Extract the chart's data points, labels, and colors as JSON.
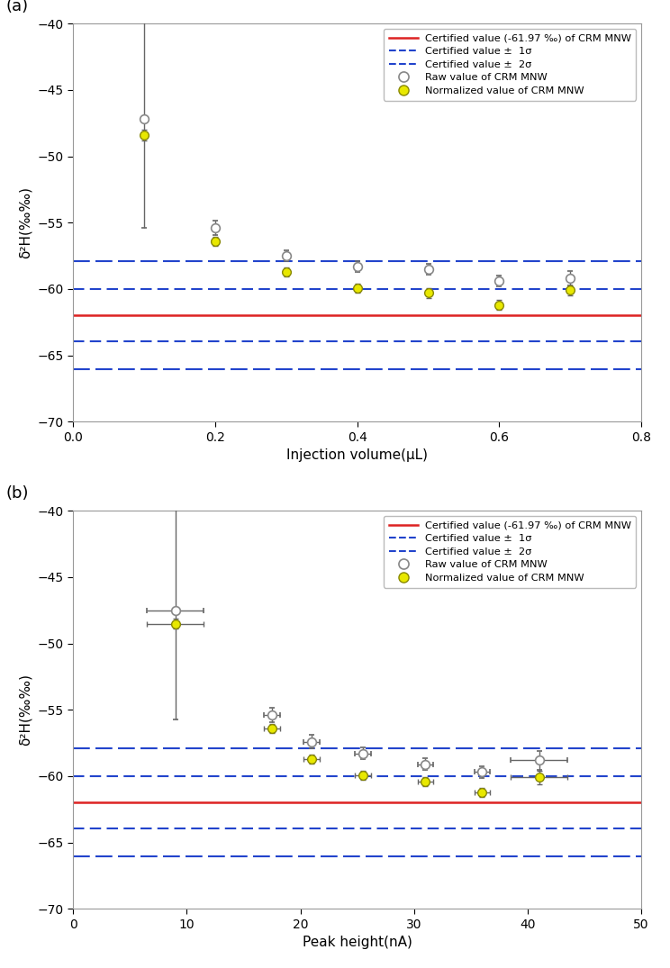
{
  "certified_value": -61.97,
  "sigma1": 1.97,
  "sigma2": 4.1,
  "panel_a": {
    "xlabel": "Injection volume(μL)",
    "xlim": [
      0.0,
      0.8
    ],
    "xticks": [
      0.0,
      0.2,
      0.4,
      0.6,
      0.8
    ],
    "raw_x": [
      0.1,
      0.2,
      0.3,
      0.4,
      0.5,
      0.6,
      0.7
    ],
    "raw_y": [
      -47.2,
      -55.4,
      -57.5,
      -58.3,
      -58.5,
      -59.4,
      -59.2
    ],
    "raw_yerr": [
      8.2,
      0.55,
      0.4,
      0.4,
      0.4,
      0.4,
      0.55
    ],
    "norm_x": [
      0.1,
      0.2,
      0.3,
      0.4,
      0.5,
      0.6,
      0.7
    ],
    "norm_y": [
      -48.4,
      -56.4,
      -58.7,
      -59.95,
      -60.3,
      -61.2,
      -60.1
    ],
    "norm_yerr": [
      0.4,
      0.35,
      0.35,
      0.35,
      0.35,
      0.35,
      0.35
    ]
  },
  "panel_b": {
    "xlabel": "Peak height(nA)",
    "xlim": [
      0,
      50
    ],
    "xticks": [
      0,
      10,
      20,
      30,
      40,
      50
    ],
    "raw_x": [
      9.0,
      17.5,
      21.0,
      25.5,
      31.0,
      36.0,
      41.0
    ],
    "raw_y": [
      -47.5,
      -55.4,
      -57.4,
      -58.3,
      -59.1,
      -59.7,
      -58.8
    ],
    "raw_xerr": [
      2.5,
      0.7,
      0.7,
      0.7,
      0.7,
      0.7,
      2.5
    ],
    "raw_yerr": [
      8.2,
      0.55,
      0.5,
      0.45,
      0.45,
      0.45,
      0.7
    ],
    "norm_x": [
      9.0,
      17.5,
      21.0,
      25.5,
      31.0,
      36.0,
      41.0
    ],
    "norm_y": [
      -48.5,
      -56.4,
      -58.7,
      -59.95,
      -60.4,
      -61.25,
      -60.1
    ],
    "norm_xerr": [
      2.5,
      0.7,
      0.7,
      0.7,
      0.7,
      0.7,
      2.5
    ],
    "norm_yerr": [
      0.4,
      0.35,
      0.35,
      0.35,
      0.35,
      0.35,
      0.5
    ]
  },
  "ylim": [
    -70,
    -40
  ],
  "yticks": [
    -70,
    -65,
    -60,
    -55,
    -50,
    -45,
    -40
  ],
  "ylabel": "δ²H(‰‰)",
  "color_raw_edge": "#888888",
  "color_norm_face": "#e8e800",
  "color_norm_edge": "#888800",
  "color_red": "#dd2222",
  "color_blue1": "#2244cc",
  "color_blue2": "#2244cc",
  "legend_labels": [
    "Certified value (-61.97 ‰) of CRM MNW",
    "Certified value ±  1σ",
    "Certified value ±  2σ",
    "Raw value of CRM MNW",
    "Normalized value of CRM MNW"
  ]
}
